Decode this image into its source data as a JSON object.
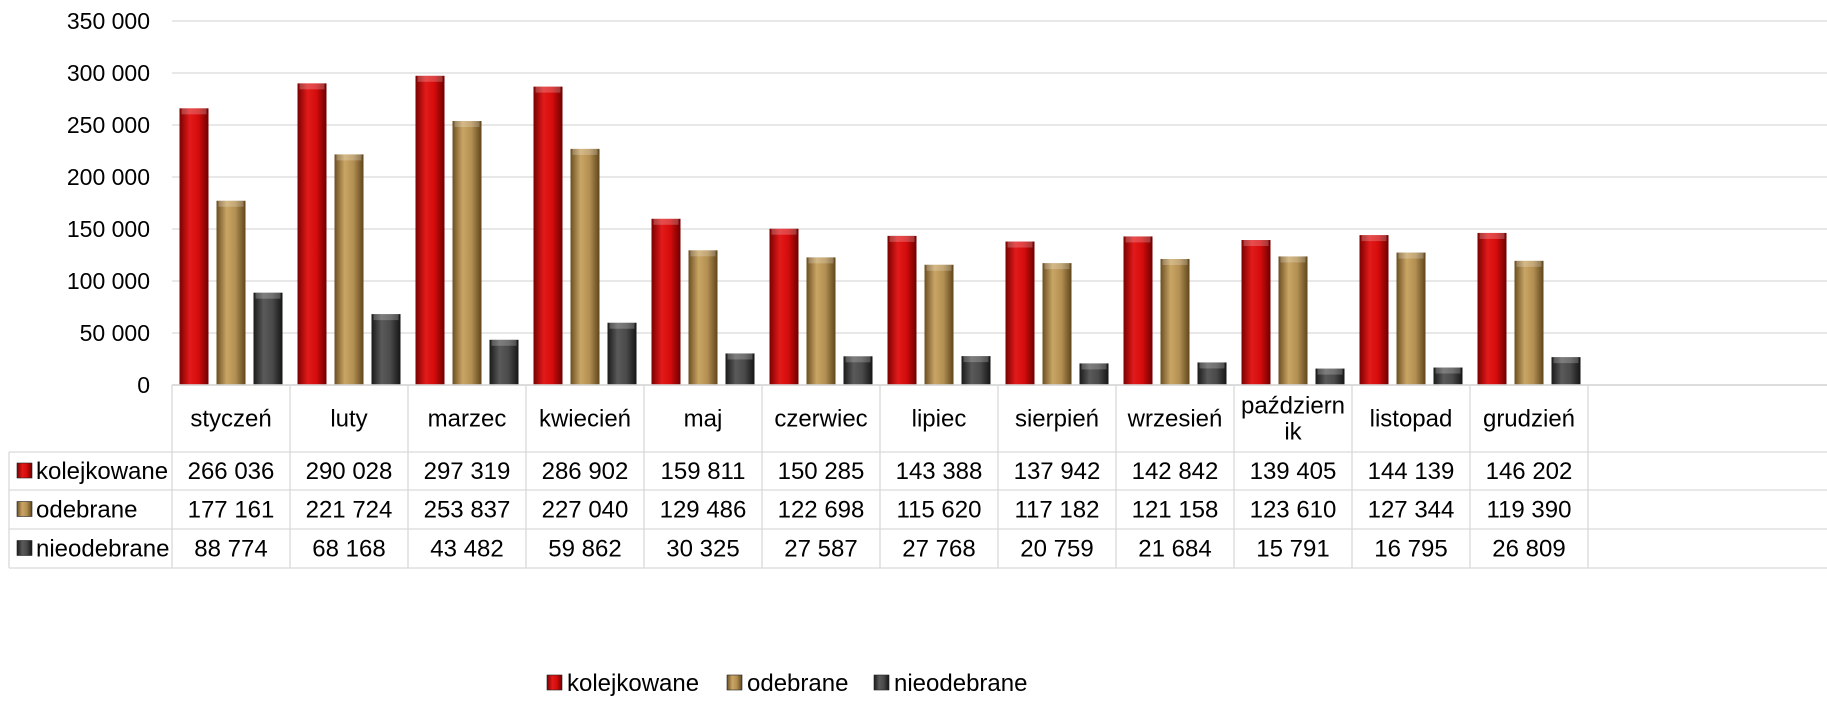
{
  "chart_data": {
    "type": "bar",
    "categories": [
      "styczeń",
      "luty",
      "marzec",
      "kwiecień",
      "maj",
      "czerwiec",
      "lipiec",
      "sierpień",
      "wrzesień",
      "październik",
      "listopad",
      "grudzień"
    ],
    "category_lines": [
      [
        "styczeń"
      ],
      [
        "luty"
      ],
      [
        "marzec"
      ],
      [
        "kwiecień"
      ],
      [
        "maj"
      ],
      [
        "czerwiec"
      ],
      [
        "lipiec"
      ],
      [
        "sierpień"
      ],
      [
        "wrzesień"
      ],
      [
        "październ",
        "ik"
      ],
      [
        "listopad"
      ],
      [
        "grudzień"
      ]
    ],
    "series": [
      {
        "name": "kolejkowane",
        "color": "#c00000",
        "values": [
          266036,
          290028,
          297319,
          286902,
          159811,
          150285,
          143388,
          137942,
          142842,
          139405,
          144139,
          146202
        ],
        "labels": [
          "266 036",
          "290 028",
          "297 319",
          "286 902",
          "159 811",
          "150 285",
          "143 388",
          "137 942",
          "142 842",
          "139 405",
          "144 139",
          "146 202"
        ]
      },
      {
        "name": "odebrane",
        "color": "#a5834a",
        "values": [
          177161,
          221724,
          253837,
          227040,
          129486,
          122698,
          115620,
          117182,
          121158,
          123610,
          127344,
          119390
        ],
        "labels": [
          "177 161",
          "221 724",
          "253 837",
          "227 040",
          "129 486",
          "122 698",
          "115 620",
          "117 182",
          "121 158",
          "123 610",
          "127 344",
          "119 390"
        ]
      },
      {
        "name": "nieodebrane",
        "color": "#404040",
        "values": [
          88774,
          68168,
          43482,
          59862,
          30325,
          27587,
          27768,
          20759,
          21684,
          15791,
          16795,
          26809
        ],
        "labels": [
          "88 774",
          "68 168",
          "43 482",
          "59 862",
          "30 325",
          "27 587",
          "27 768",
          "20 759",
          "21 684",
          "15 791",
          "16 795",
          "26 809"
        ]
      }
    ],
    "y_ticks": [
      0,
      50000,
      100000,
      150000,
      200000,
      250000,
      300000,
      350000
    ],
    "y_tick_labels": [
      "0",
      "50 000",
      "100 000",
      "150 000",
      "200 000",
      "250 000",
      "300 000",
      "350 000"
    ],
    "ylim": [
      0,
      350000
    ],
    "grid": true,
    "data_table": true,
    "legend_position": "bottom"
  }
}
